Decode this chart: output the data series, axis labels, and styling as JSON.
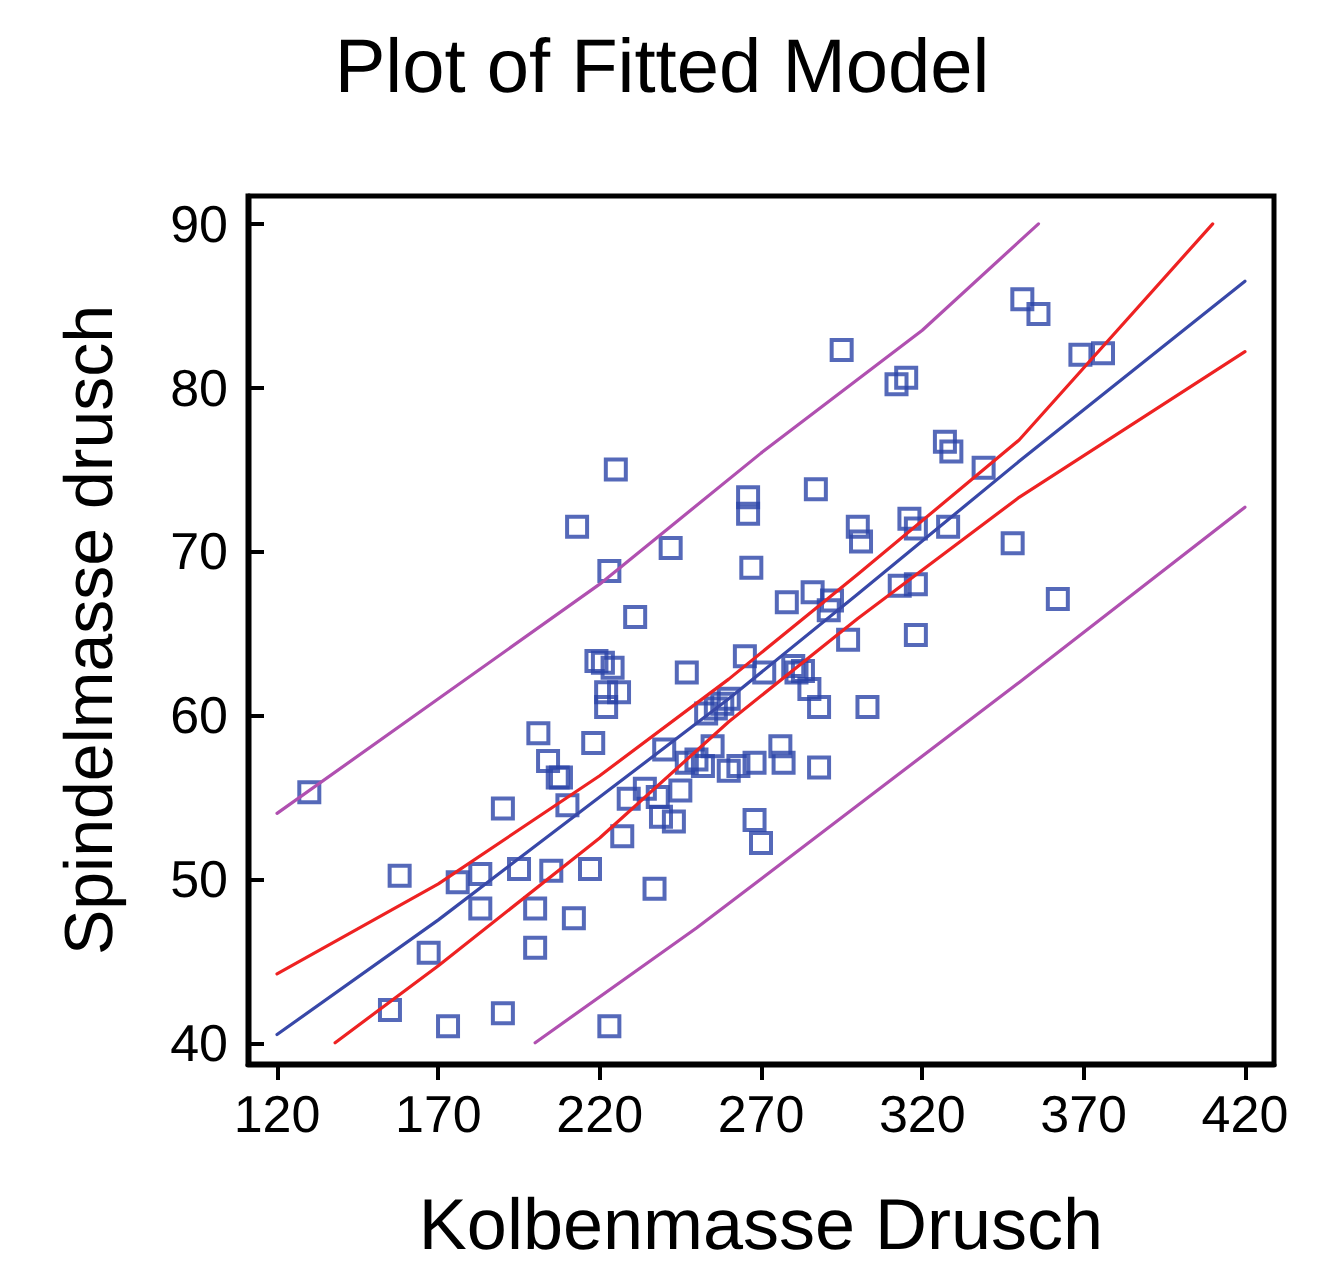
{
  "chart_data": {
    "type": "scatter",
    "title": "Plot of Fitted Model",
    "xlabel": "Kolbenmasse Drusch",
    "ylabel": "Spindelmasse drusch",
    "xlim": [
      111,
      429
    ],
    "ylim": [
      38.7,
      91.7
    ],
    "xticks": [
      120,
      170,
      220,
      270,
      320,
      370,
      420
    ],
    "yticks": [
      40,
      50,
      60,
      70,
      80,
      90
    ],
    "grid": false,
    "marker": "square",
    "series": [
      {
        "color": "#2a44a8",
        "x": [
          130,
          155,
          158,
          167,
          173,
          176,
          183,
          183,
          190,
          190,
          195,
          200,
          200,
          201,
          204,
          205,
          207,
          208,
          210,
          212,
          213,
          217,
          218,
          219,
          221,
          222,
          222,
          223,
          223,
          225,
          224,
          226,
          227,
          229,
          231,
          234,
          237,
          238,
          239,
          240,
          242,
          243,
          245,
          247,
          247,
          250,
          252,
          253,
          255,
          256,
          258,
          260,
          260,
          263,
          265,
          266,
          266,
          267,
          268,
          268,
          270,
          271,
          276,
          277,
          278,
          280,
          281,
          283,
          285,
          286,
          287,
          288,
          288,
          291,
          292,
          295,
          297,
          300,
          301,
          303,
          312,
          313,
          315,
          316,
          318,
          318,
          318,
          327,
          328,
          329,
          339,
          348,
          351,
          356,
          362,
          369,
          376
        ],
        "values": [
          55.3,
          42,
          50.2,
          45.5,
          41,
          49.8,
          48.2,
          50.3,
          54.3,
          41.8,
          50.6,
          48.2,
          45.8,
          58.9,
          57.2,
          50.5,
          56.2,
          56.2,
          54.5,
          47.6,
          71.5,
          50.6,
          58.3,
          63.3,
          63.2,
          61.4,
          60.5,
          41,
          68.8,
          75,
          62.9,
          61.4,
          52.6,
          54.9,
          66,
          55.5,
          49.4,
          55,
          53.8,
          57.9,
          70.2,
          53.5,
          55.4,
          62.6,
          57.1,
          57.3,
          56.9,
          60.1,
          58.1,
          60.4,
          60.7,
          61,
          56.6,
          56.9,
          63.6,
          73.3,
          72.3,
          69,
          53.6,
          57.1,
          52.2,
          62.6,
          58.1,
          57.1,
          66.9,
          63,
          62.6,
          62.7,
          61.6,
          67.5,
          73.8,
          60.5,
          56.8,
          66.4,
          67,
          82.3,
          64.6,
          71.5,
          70.6,
          60.5,
          80.2,
          67.9,
          80.6,
          72,
          71.4,
          68,
          64.9,
          76.7,
          71.5,
          76.1,
          75.1,
          70.5,
          85.4,
          84.5,
          67.1,
          82,
          82.1
        ]
      },
      {
        "type": "line",
        "color": "#3848a8",
        "marker": "none",
        "x": [
          120,
          170,
          220,
          260,
          300,
          350,
          420
        ],
        "values": [
          40.5,
          47.5,
          55,
          61,
          67.4,
          75.5,
          86.5
        ]
      },
      {
        "type": "line",
        "color": "#ee2222",
        "marker": "none",
        "x": [
          120,
          170,
          220,
          260,
          300,
          350,
          410
        ],
        "values": [
          44.2,
          49.7,
          56.3,
          62.2,
          68.6,
          76.8,
          90
        ]
      },
      {
        "type": "line",
        "color": "#ee2222",
        "marker": "none",
        "x": [
          138,
          170,
          220,
          260,
          300,
          350,
          420
        ],
        "values": [
          40,
          44.7,
          52.5,
          59.6,
          65.9,
          73.3,
          82.2
        ]
      },
      {
        "type": "line",
        "color": "#b050b0",
        "marker": "none",
        "x": [
          120,
          170,
          220,
          270,
          320,
          356
        ],
        "values": [
          54,
          61,
          68,
          76,
          83.5,
          90
        ]
      },
      {
        "type": "line",
        "color": "#b050b0",
        "marker": "none",
        "x": [
          200,
          250,
          300,
          350,
          420
        ],
        "values": [
          40,
          47,
          54.5,
          62,
          72.7
        ]
      }
    ]
  }
}
